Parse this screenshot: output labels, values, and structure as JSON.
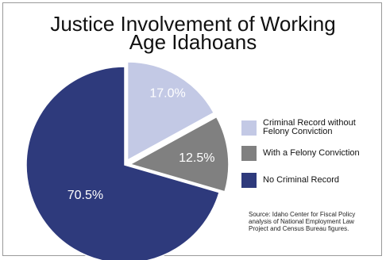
{
  "chart_data": {
    "type": "pie",
    "title": "Justice Involvement of Working Age Idahoans",
    "slices": [
      {
        "label": "Criminal Record without Felony Conviction",
        "value": 17.0,
        "value_label": "17.0%",
        "color": "#c3c9e5"
      },
      {
        "label": "With a Felony Conviction",
        "value": 12.5,
        "value_label": "12.5%",
        "color": "#808080"
      },
      {
        "label": "No Criminal Record",
        "value": 70.5,
        "value_label": "70.5%",
        "color": "#2e3a7c"
      }
    ],
    "legend_position": "right"
  },
  "title_lines": [
    "Justice Involvement of Working",
    "Age Idahoans"
  ],
  "legend": [
    {
      "lines": [
        "Criminal Record without",
        "Felony Conviction"
      ],
      "color": "#c3c9e5"
    },
    {
      "lines": [
        "With a Felony Conviction"
      ],
      "color": "#808080"
    },
    {
      "lines": [
        "No Criminal Record"
      ],
      "color": "#2e3a7c"
    }
  ],
  "source_lines": [
    "Source: Idaho Center for Fiscal Policy",
    "analysis of National Employment Law",
    "Project and Census Bureau figures."
  ]
}
